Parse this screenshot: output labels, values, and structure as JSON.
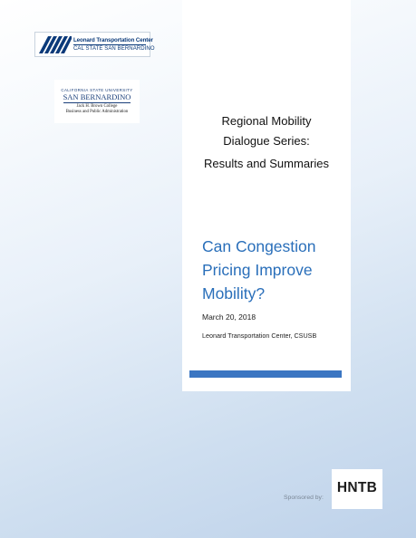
{
  "logos": {
    "ltc": {
      "name": "Leonard Transportation Center",
      "campus": "CAL STATE SAN BERNARDINO"
    },
    "csusb": {
      "university": "CALIFORNIA STATE UNIVERSITY",
      "campus": "SAN BERNARDINO",
      "college": "Jack H. Brown College",
      "department": "Business and Public Administration"
    },
    "sponsor": {
      "name": "HNTB"
    }
  },
  "cover": {
    "series_line1": "Regional Mobility",
    "series_line2": "Dialogue Series:",
    "series_subtitle": "Results and Summaries",
    "question_line1": "Can Congestion",
    "question_line2": "Pricing Improve",
    "question_line3": "Mobility?",
    "date": "March 20, 2018",
    "organization": "Leonard Transportation Center, CSUSB",
    "sponsored_label": "Sponsored by:"
  },
  "colors": {
    "accent_blue": "#2a6fba",
    "bar_blue": "#3b76c2",
    "logo_navy": "#0b3a7a"
  }
}
